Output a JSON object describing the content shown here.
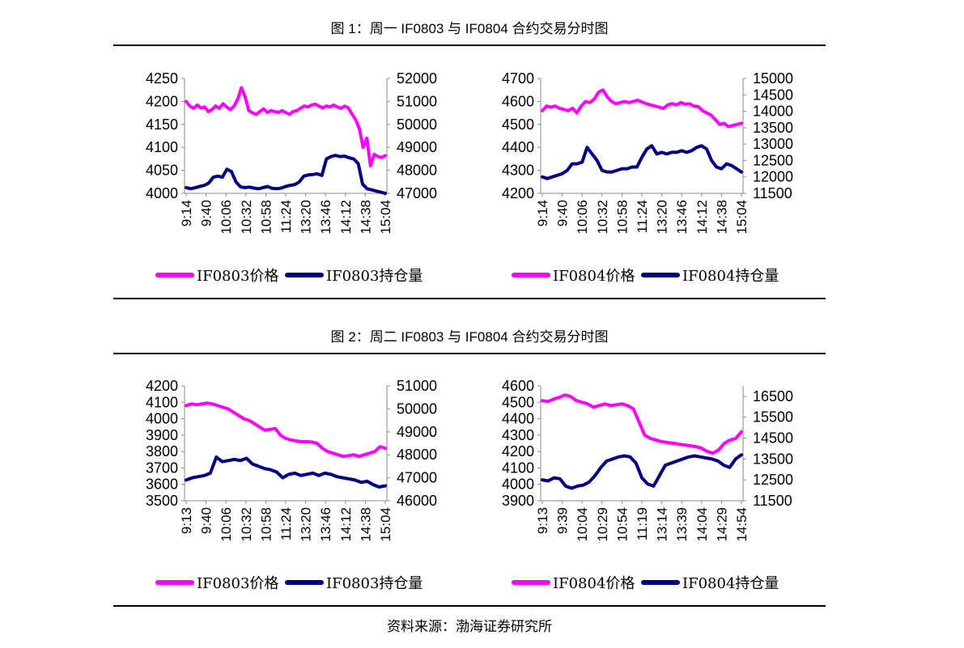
{
  "figure1": {
    "title": "图 1：周一 IF0803 与 IF0804 合约交易分时图"
  },
  "figure2": {
    "title": "图 2：周二 IF0803 与 IF0804 合约交易分时图"
  },
  "source": "资料来源：渤海证券研究所",
  "colors": {
    "price": "#FF00FF",
    "oi": "#000080"
  },
  "chart_data": [
    {
      "type": "line",
      "x_ticks": [
        "9:14",
        "9:40",
        "10:06",
        "10:32",
        "10:58",
        "11:24",
        "13:20",
        "13:46",
        "14:12",
        "14:38",
        "15:04"
      ],
      "y_left": {
        "ticks": [
          4000,
          4050,
          4100,
          4150,
          4200,
          4250
        ],
        "ylim": [
          4000,
          4250
        ]
      },
      "y_right": {
        "ticks": [
          47000,
          48000,
          49000,
          50000,
          51000,
          52000
        ],
        "ylim": [
          47000,
          52000
        ]
      },
      "series": [
        {
          "name": "IF0803价格",
          "axis": "left",
          "color": "#FF00FF",
          "values": [
            4200,
            4190,
            4185,
            4192,
            4186,
            4188,
            4178,
            4182,
            4190,
            4185,
            4195,
            4188,
            4182,
            4190,
            4205,
            4230,
            4210,
            4180,
            4175,
            4172,
            4178,
            4184,
            4176,
            4180,
            4178,
            4176,
            4180,
            4176,
            4172,
            4178,
            4180,
            4185,
            4190,
            4188,
            4192,
            4194,
            4190,
            4186,
            4190,
            4188,
            4192,
            4188,
            4185,
            4190,
            4186,
            4172,
            4160,
            4140,
            4100,
            4120,
            4060,
            4085,
            4080,
            4078,
            4082
          ]
        },
        {
          "name": "IF0803持仓量",
          "axis": "right",
          "color": "#000080",
          "values": [
            47250,
            47200,
            47250,
            47300,
            47350,
            47450,
            47700,
            47750,
            47700,
            48050,
            47950,
            47500,
            47280,
            47250,
            47270,
            47230,
            47200,
            47250,
            47300,
            47220,
            47200,
            47230,
            47300,
            47350,
            47380,
            47500,
            47750,
            47800,
            47820,
            47850,
            47780,
            48500,
            48600,
            48650,
            48600,
            48620,
            48550,
            48500,
            48300,
            47400,
            47200,
            47150,
            47100,
            47050,
            47000
          ]
        }
      ]
    },
    {
      "type": "line",
      "x_ticks": [
        "9:14",
        "9:40",
        "10:06",
        "10:32",
        "10:58",
        "11:24",
        "13:20",
        "13:46",
        "14:12",
        "14:38",
        "15:04"
      ],
      "y_left": {
        "ticks": [
          4200,
          4300,
          4400,
          4500,
          4600,
          4700
        ],
        "ylim": [
          4200,
          4700
        ]
      },
      "y_right": {
        "ticks": [
          11500,
          12000,
          12500,
          13000,
          13500,
          14000,
          14500,
          15000
        ],
        "ylim": [
          11500,
          15000
        ]
      },
      "series": [
        {
          "name": "IF0804价格",
          "axis": "left",
          "color": "#FF00FF",
          "values": [
            4560,
            4580,
            4575,
            4580,
            4570,
            4565,
            4560,
            4570,
            4550,
            4580,
            4600,
            4595,
            4610,
            4640,
            4650,
            4620,
            4600,
            4590,
            4595,
            4600,
            4595,
            4600,
            4605,
            4598,
            4590,
            4585,
            4580,
            4575,
            4570,
            4585,
            4590,
            4585,
            4595,
            4588,
            4590,
            4580,
            4578,
            4560,
            4550,
            4540,
            4520,
            4500,
            4505,
            4490,
            4495,
            4500,
            4505
          ]
        },
        {
          "name": "IF0804持仓量",
          "axis": "right",
          "color": "#000080",
          "values": [
            12000,
            11950,
            12000,
            12050,
            12100,
            12200,
            12400,
            12400,
            12450,
            12900,
            12700,
            12500,
            12200,
            12150,
            12150,
            12200,
            12250,
            12250,
            12300,
            12300,
            12600,
            12850,
            12950,
            12700,
            12750,
            12700,
            12750,
            12750,
            12800,
            12750,
            12800,
            12900,
            12950,
            12850,
            12500,
            12300,
            12250,
            12400,
            12350,
            12250,
            12150
          ]
        }
      ]
    },
    {
      "type": "line",
      "x_ticks": [
        "9:13",
        "9:40",
        "10:06",
        "10:32",
        "10:58",
        "11:24",
        "13:20",
        "13:46",
        "14:12",
        "14:38",
        "15:04"
      ],
      "y_left": {
        "ticks": [
          3500,
          3600,
          3700,
          3800,
          3900,
          4000,
          4100,
          4200
        ],
        "ylim": [
          3500,
          4200
        ]
      },
      "y_right": {
        "ticks": [
          46000,
          47000,
          48000,
          49000,
          50000,
          51000
        ],
        "ylim": [
          46000,
          51000
        ]
      },
      "series": [
        {
          "name": "IF0803价格",
          "axis": "left",
          "color": "#FF00FF",
          "values": [
            4080,
            4090,
            4085,
            4090,
            4095,
            4090,
            4080,
            4070,
            4060,
            4040,
            4020,
            4000,
            3990,
            3970,
            3950,
            3930,
            3935,
            3940,
            3900,
            3880,
            3870,
            3865,
            3860,
            3860,
            3858,
            3850,
            3820,
            3800,
            3790,
            3780,
            3770,
            3775,
            3780,
            3770,
            3780,
            3790,
            3800,
            3830,
            3820
          ]
        },
        {
          "name": "IF0803持仓量",
          "axis": "right",
          "color": "#000080",
          "values": [
            46900,
            47000,
            47050,
            47100,
            47200,
            47900,
            47700,
            47750,
            47800,
            47750,
            47850,
            47600,
            47500,
            47400,
            47350,
            47250,
            47000,
            47150,
            47200,
            47100,
            47150,
            47200,
            47100,
            47200,
            47150,
            47050,
            47000,
            46950,
            46900,
            46800,
            46850,
            46700,
            46600,
            46650
          ]
        }
      ]
    },
    {
      "type": "line",
      "x_ticks": [
        "9:13",
        "9:39",
        "10:04",
        "10:29",
        "10:54",
        "11:19",
        "13:14",
        "13:39",
        "14:04",
        "14:29",
        "14:54"
      ],
      "y_left": {
        "ticks": [
          3900,
          4000,
          4100,
          4200,
          4300,
          4400,
          4500,
          4600
        ],
        "ylim": [
          3900,
          4600
        ]
      },
      "y_right": {
        "ticks": [
          11500,
          12500,
          13500,
          14500,
          15500,
          16500
        ],
        "ylim": [
          11500,
          17000
        ]
      },
      "series": [
        {
          "name": "IF0804价格",
          "axis": "left",
          "color": "#FF00FF",
          "values": [
            4510,
            4505,
            4520,
            4530,
            4545,
            4535,
            4510,
            4500,
            4490,
            4470,
            4480,
            4490,
            4480,
            4485,
            4490,
            4480,
            4460,
            4380,
            4300,
            4280,
            4270,
            4260,
            4255,
            4250,
            4245,
            4240,
            4235,
            4230,
            4220,
            4200,
            4190,
            4210,
            4250,
            4270,
            4280,
            4320
          ]
        },
        {
          "name": "IF0804持仓量",
          "axis": "right",
          "color": "#000080",
          "values": [
            12500,
            12450,
            12600,
            12550,
            12200,
            12100,
            12200,
            12250,
            12400,
            12700,
            13100,
            13400,
            13500,
            13600,
            13650,
            13600,
            13300,
            12600,
            12300,
            12200,
            12700,
            13200,
            13300,
            13400,
            13500,
            13600,
            13650,
            13600,
            13550,
            13500,
            13400,
            13200,
            13100,
            13500,
            13700
          ]
        }
      ]
    }
  ]
}
